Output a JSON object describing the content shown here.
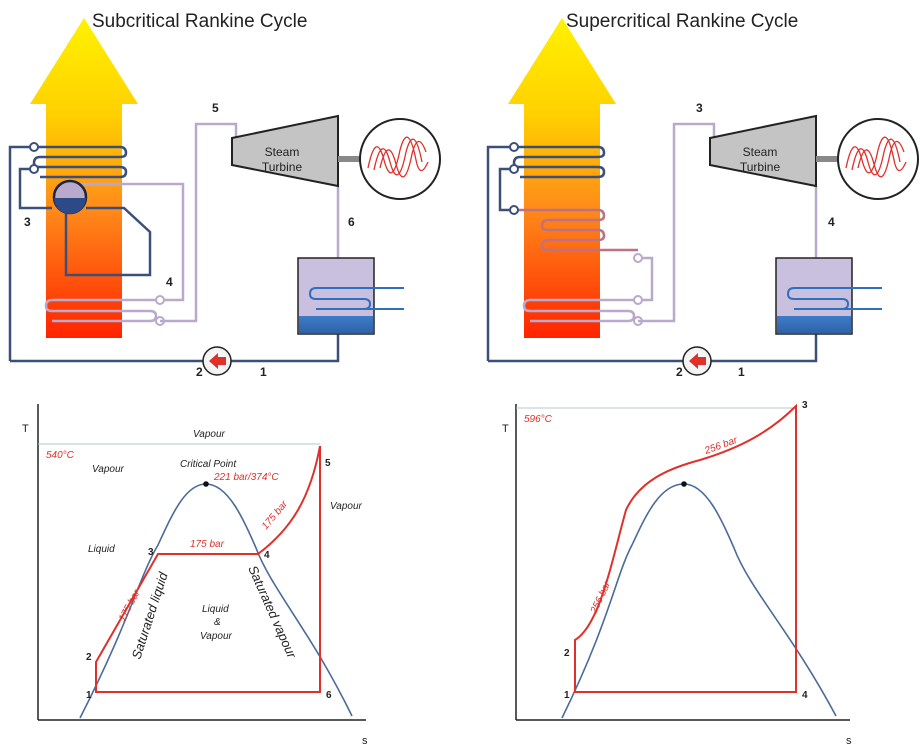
{
  "left": {
    "title": "Subcritical Rankine Cycle",
    "turbine_line1": "Steam",
    "turbine_line2": "Turbine",
    "schematic_points": [
      "1",
      "2",
      "3",
      "4",
      "5",
      "6"
    ],
    "ts": {
      "t_axis": "T",
      "s_axis": "s",
      "vapour_top": "Vapour",
      "vapour_left": "Vapour",
      "vapour_right": "Vapour",
      "liquid": "Liquid",
      "critical_point": "Critical Point",
      "critical_value": "221 bar/374°C",
      "temp": "540°C",
      "pressure_horizontal": "175 bar",
      "pressure_left": "175 bar",
      "pressure_right": "175 bar",
      "saturated_liquid": "Saturated liquid",
      "saturated_vapour": "Saturated vapour",
      "wet1": "Liquid",
      "wet2": "&",
      "wet3": "Vapour",
      "points": [
        "1",
        "2",
        "3",
        "4",
        "5",
        "6"
      ]
    }
  },
  "right": {
    "title": "Supercritical Rankine Cycle",
    "turbine_line1": "Steam",
    "turbine_line2": "Turbine",
    "schematic_points": [
      "1",
      "2",
      "3",
      "4"
    ],
    "ts": {
      "t_axis": "T",
      "s_axis": "s",
      "temp": "596°C",
      "pressure_upper": "256 bar",
      "pressure_lower": "256 bar",
      "points": [
        "1",
        "2",
        "3",
        "4"
      ]
    }
  },
  "colors": {
    "water_pipe": "#3a5078",
    "steam_pipe": "#b9a9cc",
    "cycle_line": "#e0302a",
    "dome_line": "#4a6a9a"
  }
}
